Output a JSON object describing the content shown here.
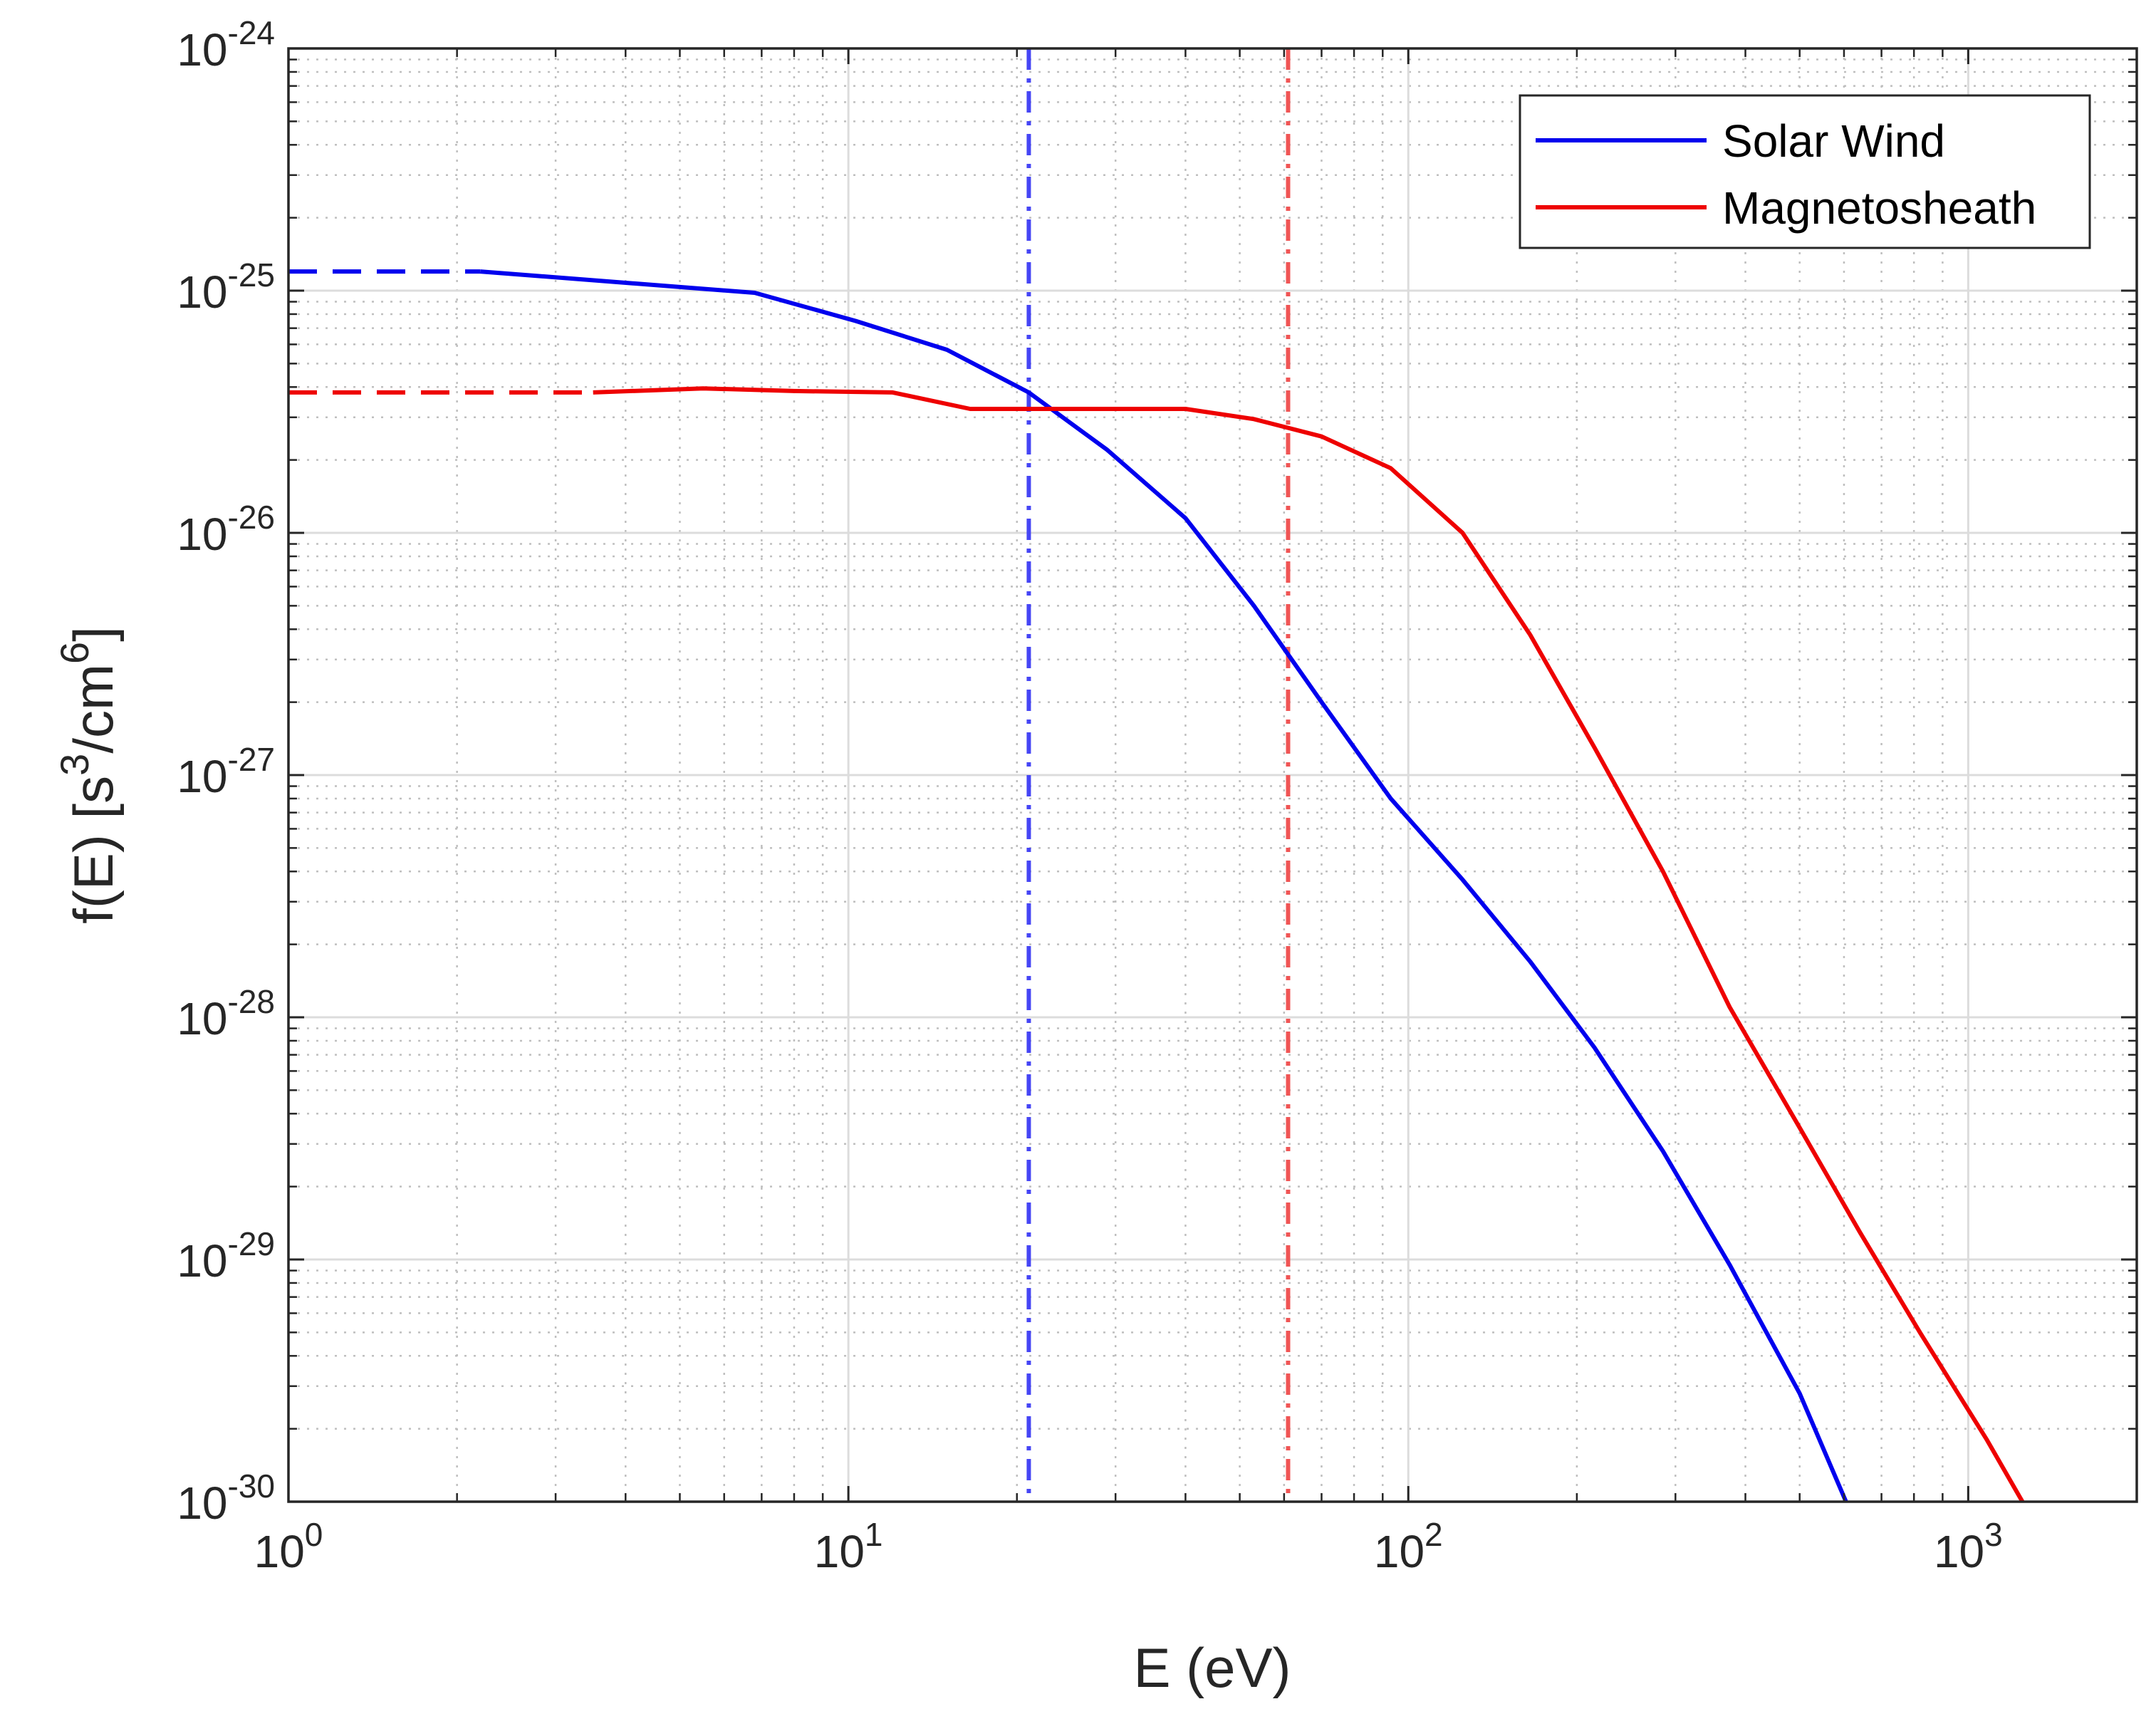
{
  "chart_data": {
    "type": "line",
    "x_scale": "log",
    "y_scale": "log",
    "xlabel": "E (eV)",
    "ylabel": {
      "main": "f(E) [s",
      "sup1": "3",
      "mid": "/cm",
      "sup2": "6",
      "end": "]"
    },
    "xlim": [
      1,
      2000
    ],
    "ylim": [
      1e-30,
      1e-24
    ],
    "grid": "major-and-minor",
    "x_ticks": [
      {
        "value": 1,
        "base": "10",
        "exp": "0"
      },
      {
        "value": 10,
        "base": "10",
        "exp": "1"
      },
      {
        "value": 100,
        "base": "10",
        "exp": "2"
      },
      {
        "value": 1000,
        "base": "10",
        "exp": "3"
      }
    ],
    "y_ticks": [
      {
        "value": 1e-24,
        "base": "10",
        "exp": "-24"
      },
      {
        "value": 1e-25,
        "base": "10",
        "exp": "-25"
      },
      {
        "value": 1e-26,
        "base": "10",
        "exp": "-26"
      },
      {
        "value": 1e-27,
        "base": "10",
        "exp": "-27"
      },
      {
        "value": 1e-28,
        "base": "10",
        "exp": "-28"
      },
      {
        "value": 1e-29,
        "base": "10",
        "exp": "-29"
      },
      {
        "value": 1e-30,
        "base": "10",
        "exp": "-30"
      }
    ],
    "series": [
      {
        "name": "Solar Wind",
        "color": "#0000ee",
        "extrapolation": {
          "x": [
            1,
            2.2
          ],
          "y": [
            1.2e-25,
            1.2e-25
          ]
        },
        "x": [
          2.2,
          6.8,
          10.3,
          15,
          21,
          29,
          40,
          53,
          70,
          93,
          125,
          165,
          215,
          285,
          375,
          500,
          605
        ],
        "y": [
          1.2e-25,
          9.8e-26,
          7.5e-26,
          5.7e-26,
          3.8e-26,
          2.2e-26,
          1.15e-26,
          5e-27,
          2e-27,
          8e-28,
          3.7e-28,
          1.7e-28,
          7.5e-29,
          2.8e-29,
          9.5e-30,
          2.8e-30,
          1e-30
        ]
      },
      {
        "name": "Magnetosheath",
        "color": "#ee0000",
        "extrapolation": {
          "x": [
            1,
            3.5
          ],
          "y": [
            3.8e-26,
            3.8e-26
          ]
        },
        "x": [
          3.5,
          5.5,
          8,
          12,
          16.5,
          22,
          30,
          40,
          53,
          70,
          93,
          125,
          165,
          215,
          285,
          375,
          500,
          640,
          820,
          1080,
          1250
        ],
        "y": [
          3.8e-26,
          3.95e-26,
          3.85e-26,
          3.8e-26,
          3.25e-26,
          3.25e-26,
          3.25e-26,
          3.25e-26,
          2.95e-26,
          2.5e-26,
          1.85e-26,
          1e-26,
          3.8e-27,
          1.3e-27,
          4e-28,
          1.1e-28,
          3.5e-29,
          1.3e-29,
          5e-30,
          1.8e-30,
          1e-30
        ]
      }
    ],
    "vertical_markers": [
      {
        "x": 21,
        "color": "#4545f5",
        "style": "dash-dot"
      },
      {
        "x": 61,
        "color": "#f05555",
        "style": "dash-dot"
      }
    ],
    "legend": {
      "position": "top-right",
      "entries": [
        {
          "label": "Solar Wind",
          "color": "#0000ee"
        },
        {
          "label": "Magnetosheath",
          "color": "#ee0000"
        }
      ]
    }
  }
}
